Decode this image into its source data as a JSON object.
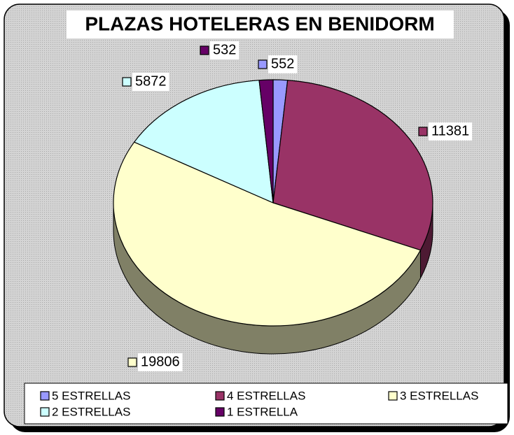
{
  "chart_data": {
    "type": "pie",
    "title": "PLAZAS HOTELERAS EN BENIDORM",
    "categories": [
      "5 ESTRELLAS",
      "4 ESTRELLAS",
      "3 ESTRELLAS",
      "2 ESTRELLAS",
      "1 ESTRELLA"
    ],
    "values": [
      552,
      11381,
      19806,
      5872,
      532
    ],
    "colors": [
      "#9999ff",
      "#993366",
      "#ffffcc",
      "#ccffff",
      "#660066"
    ],
    "legend": "bottom",
    "three_d": true
  }
}
